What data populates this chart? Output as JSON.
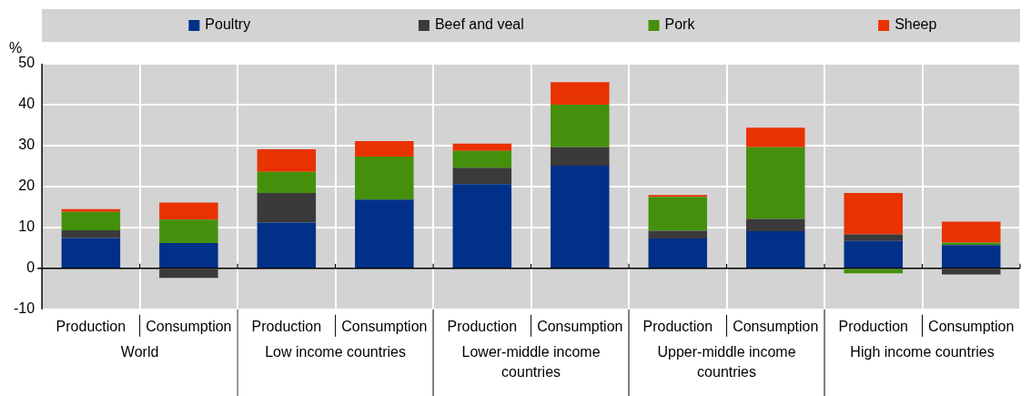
{
  "chart_data": {
    "type": "bar",
    "stacked": true,
    "ylabel": "%",
    "ylim": [
      -10,
      50
    ],
    "yticks": [
      -10,
      0,
      10,
      20,
      30,
      40,
      50
    ],
    "grid": true,
    "legend": "top",
    "categories": [
      "Production",
      "Consumption",
      "Production",
      "Consumption",
      "Production",
      "Consumption",
      "Production",
      "Consumption",
      "Production",
      "Consumption"
    ],
    "annotations": [
      "World",
      "Low income countries",
      "Lower-middle income countries",
      "Upper-middle income countries",
      "High income countries"
    ],
    "series": [
      {
        "name": "Poultry",
        "color": "#003087",
        "values": [
          7.4,
          6.2,
          11.2,
          16.8,
          20.6,
          25.1,
          7.3,
          9.1,
          6.7,
          5.7
        ]
      },
      {
        "name": "Beef and veal",
        "color": "#3a3a3a",
        "values": [
          1.9,
          -2.3,
          7.2,
          0,
          4.0,
          4.5,
          1.9,
          3.0,
          1.6,
          -1.5
        ]
      },
      {
        "name": "Pork",
        "color": "#44900c",
        "values": [
          4.5,
          5.7,
          5.2,
          10.5,
          4.1,
          10.4,
          8.3,
          17.5,
          -1.2,
          0.6
        ]
      },
      {
        "name": "Sheep",
        "color": "#e83200",
        "values": [
          0.7,
          4.2,
          5.5,
          3.8,
          1.8,
          5.5,
          0.4,
          4.8,
          10.1,
          5.1
        ]
      }
    ]
  }
}
